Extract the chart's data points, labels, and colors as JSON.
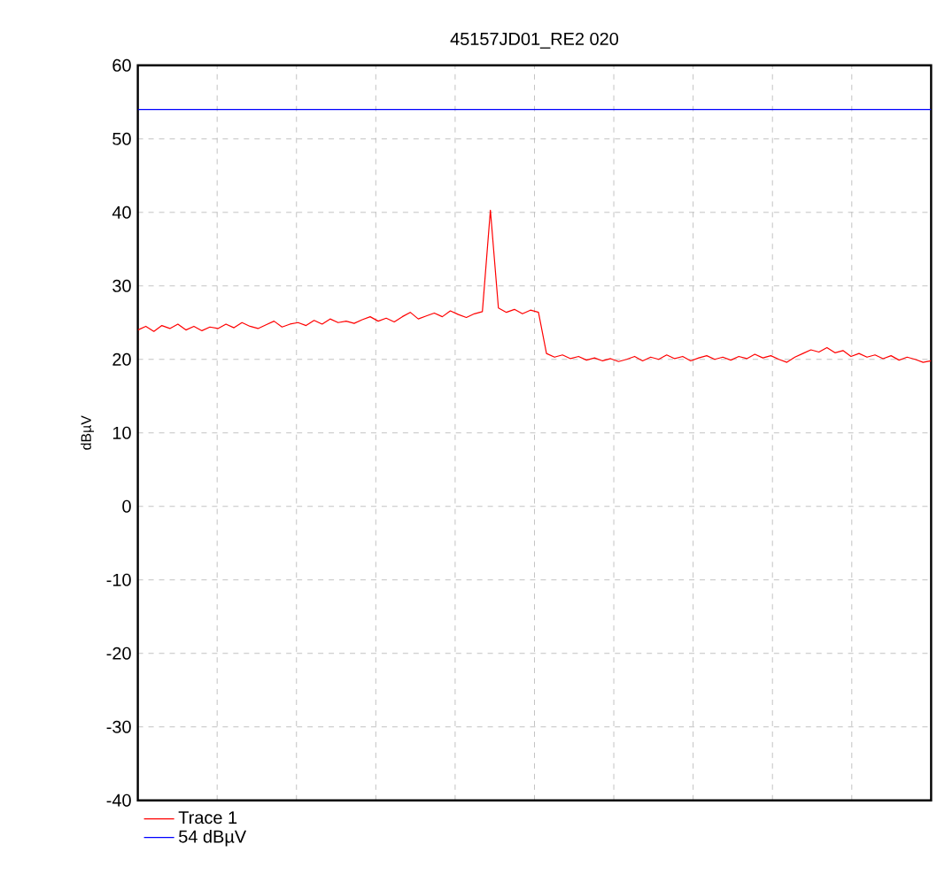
{
  "chart_data": {
    "type": "line",
    "title": "45157JD01_RE2 020",
    "ylabel": "dBµV",
    "categories": [
      null,
      null,
      null,
      null,
      null,
      null,
      null,
      null,
      null,
      null,
      null,
      null,
      null,
      null,
      null,
      null,
      null,
      null,
      null,
      null,
      null,
      null,
      null,
      null,
      null,
      null,
      null,
      null,
      null,
      null,
      null,
      null,
      null,
      null,
      null,
      null,
      null,
      null,
      null,
      null,
      null,
      null,
      null,
      null,
      null,
      null,
      null,
      null,
      null,
      null,
      null,
      null,
      null,
      null,
      null,
      null,
      null,
      null,
      null,
      null,
      null,
      null,
      null,
      null,
      null,
      null,
      null,
      null,
      null,
      null,
      null,
      null,
      null,
      null,
      null,
      null,
      null,
      null,
      null,
      null,
      null,
      null,
      null,
      null,
      null,
      null,
      null,
      null,
      null,
      null,
      null,
      null,
      null,
      null,
      null,
      null,
      null,
      null,
      null,
      null
    ],
    "series": [
      {
        "name": "Trace 1",
        "color": "#ff0000",
        "values": [
          24,
          24.5,
          23.8,
          24.6,
          24.2,
          24.8,
          24,
          24.5,
          23.9,
          24.4,
          24.2,
          24.8,
          24.3,
          25,
          24.5,
          24.2,
          24.7,
          25.2,
          24.4,
          24.8,
          25,
          24.6,
          25.3,
          24.8,
          25.5,
          25,
          25.2,
          24.9,
          25.4,
          25.8,
          25.2,
          25.6,
          25.1,
          25.8,
          26.4,
          25.5,
          25.9,
          26.3,
          25.8,
          26.6,
          26.1,
          25.7,
          26.2,
          26.5,
          40.3,
          27,
          26.4,
          26.8,
          26.2,
          26.7,
          26.4,
          20.8,
          20.3,
          20.6,
          20.1,
          20.4,
          19.9,
          20.2,
          19.8,
          20.1,
          19.7,
          20,
          20.4,
          19.8,
          20.3,
          20,
          20.6,
          20.1,
          20.4,
          19.8,
          20.2,
          20.5,
          20,
          20.3,
          19.9,
          20.4,
          20.1,
          20.7,
          20.2,
          20.5,
          20,
          19.6,
          20.3,
          20.8,
          21.3,
          21,
          21.6,
          20.9,
          21.2,
          20.4,
          20.8,
          20.3,
          20.6,
          20.1,
          20.5,
          19.9,
          20.3,
          20,
          19.6,
          19.8
        ]
      }
    ],
    "ref_lines": [
      {
        "axis": "y",
        "value": 54,
        "label": "54 dBµV",
        "color": "#0000ff"
      }
    ],
    "ylim": [
      -40,
      60
    ],
    "yticks": [
      -40,
      -30,
      -20,
      -10,
      0,
      10,
      20,
      30,
      40,
      50,
      60
    ],
    "grid": true,
    "legend": "bottom left",
    "tick_labels": "y",
    "marker": "none"
  }
}
